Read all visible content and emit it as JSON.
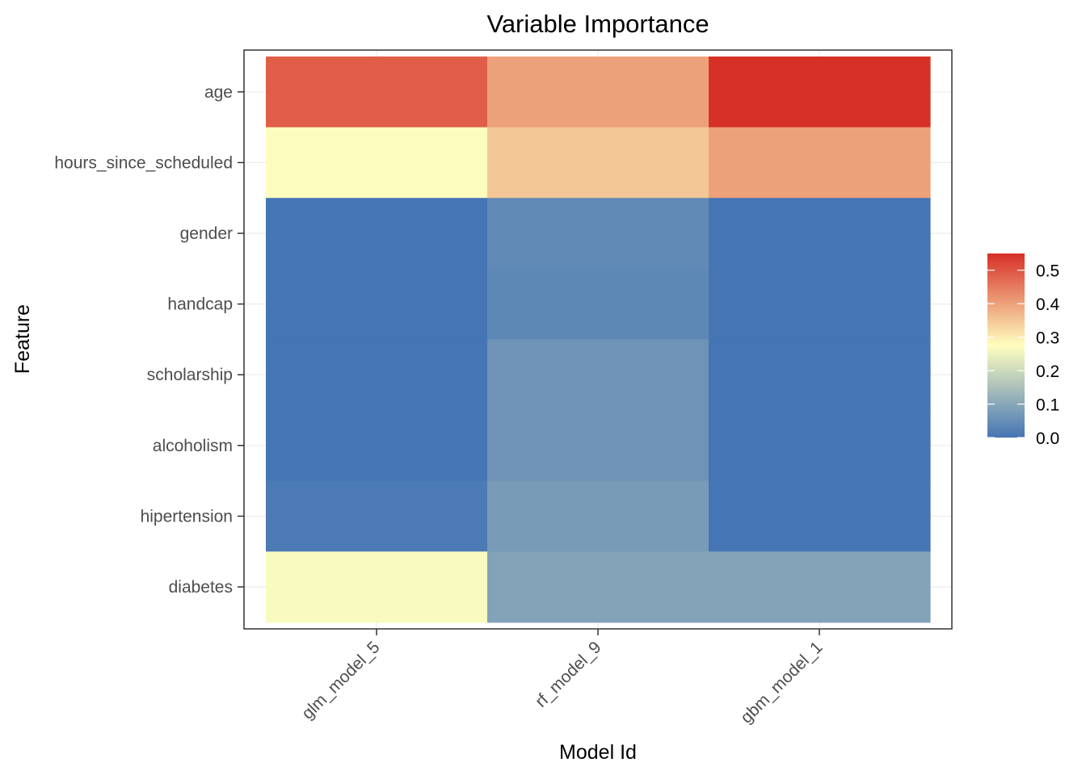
{
  "chart_data": {
    "type": "heatmap",
    "title": "Variable Importance",
    "xlabel": "Model Id",
    "ylabel": "Feature",
    "x_categories": [
      "glm_model_5",
      "rf_model_9",
      "gbm_model_1"
    ],
    "y_categories": [
      "age",
      "hours_since_scheduled",
      "gender",
      "handcap",
      "scholarship",
      "alcoholism",
      "hipertension",
      "diabetes"
    ],
    "values": [
      [
        0.49,
        0.4,
        0.55
      ],
      [
        0.27,
        0.35,
        0.4
      ],
      [
        0.0,
        0.04,
        0.0
      ],
      [
        0.0,
        0.035,
        0.0
      ],
      [
        0.0,
        0.06,
        0.0
      ],
      [
        0.0,
        0.06,
        0.0
      ],
      [
        0.01,
        0.075,
        0.0
      ],
      [
        0.265,
        0.09,
        0.09
      ]
    ],
    "color_scale": {
      "limits": [
        0,
        0.55
      ],
      "low_color": "#4575b4",
      "mid_color": "#ffffbf",
      "high_color": "#d73027"
    },
    "legend": {
      "position": "right",
      "ticks": [
        "0.0",
        "0.1",
        "0.2",
        "0.3",
        "0.4",
        "0.5"
      ],
      "tick_values": [
        0,
        0.1,
        0.2,
        0.3,
        0.4,
        0.5
      ]
    },
    "grid": true
  }
}
